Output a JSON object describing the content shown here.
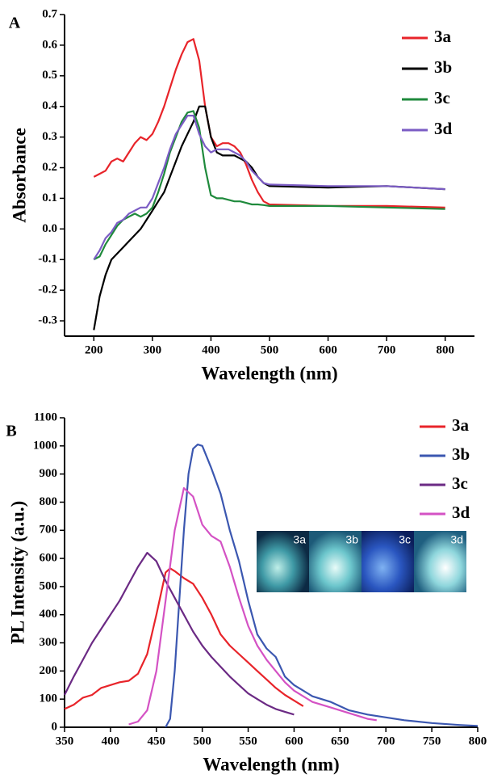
{
  "chart_data": [
    {
      "type": "line",
      "panel_label": "A",
      "xlabel": "Wavelength (nm)",
      "ylabel": "Absorbance",
      "xlim": [
        150,
        850
      ],
      "ylim": [
        -0.35,
        0.7
      ],
      "xticks": [
        200,
        300,
        400,
        500,
        600,
        700,
        800
      ],
      "yticks": [
        -0.3,
        -0.2,
        -0.1,
        {
          "value": 0,
          "label": "0.0"
        },
        0.1,
        0.2,
        0.3,
        0.4,
        0.5,
        0.6,
        0.7
      ],
      "legend": "upper right",
      "x": [
        200,
        210,
        220,
        230,
        240,
        250,
        260,
        270,
        280,
        290,
        300,
        310,
        320,
        330,
        340,
        350,
        360,
        370,
        380,
        390,
        400,
        410,
        420,
        430,
        440,
        450,
        460,
        470,
        480,
        490,
        500,
        600,
        700,
        800
      ],
      "series": [
        {
          "name": "3a",
          "color": "#e8242a",
          "values": [
            0.17,
            0.18,
            0.19,
            0.22,
            0.23,
            0.22,
            0.25,
            0.28,
            0.3,
            0.29,
            0.31,
            0.35,
            0.4,
            0.46,
            0.52,
            0.57,
            0.61,
            0.62,
            0.55,
            0.4,
            0.3,
            0.27,
            0.28,
            0.28,
            0.27,
            0.25,
            0.21,
            0.16,
            0.12,
            0.09,
            0.08,
            0.075,
            0.075,
            0.07
          ]
        },
        {
          "name": "3b",
          "color": "#000000",
          "values": [
            -0.33,
            -0.22,
            -0.15,
            -0.1,
            -0.08,
            -0.06,
            -0.04,
            -0.02,
            0.0,
            0.03,
            0.06,
            0.09,
            0.12,
            0.17,
            0.22,
            0.27,
            0.31,
            0.35,
            0.4,
            0.4,
            0.3,
            0.25,
            0.24,
            0.24,
            0.24,
            0.23,
            0.22,
            0.2,
            0.17,
            0.15,
            0.14,
            0.135,
            0.14,
            0.13
          ]
        },
        {
          "name": "3c",
          "color": "#1f8a3c",
          "values": [
            -0.1,
            -0.09,
            -0.05,
            -0.02,
            0.01,
            0.03,
            0.04,
            0.05,
            0.04,
            0.05,
            0.07,
            0.12,
            0.18,
            0.25,
            0.3,
            0.35,
            0.38,
            0.385,
            0.33,
            0.2,
            0.11,
            0.1,
            0.1,
            0.095,
            0.09,
            0.09,
            0.085,
            0.08,
            0.08,
            0.078,
            0.075,
            0.075,
            0.07,
            0.065
          ]
        },
        {
          "name": "3d",
          "color": "#7b5cc4",
          "values": [
            -0.1,
            -0.07,
            -0.03,
            -0.01,
            0.02,
            0.03,
            0.05,
            0.06,
            0.07,
            0.07,
            0.1,
            0.15,
            0.2,
            0.26,
            0.31,
            0.34,
            0.37,
            0.37,
            0.31,
            0.27,
            0.25,
            0.26,
            0.26,
            0.26,
            0.25,
            0.24,
            0.22,
            0.19,
            0.17,
            0.15,
            0.145,
            0.14,
            0.14,
            0.13
          ]
        }
      ]
    },
    {
      "type": "line",
      "panel_label": "B",
      "xlabel": "Wavelength (nm)",
      "ylabel": "PL Intensity (a.u.)",
      "xlim": [
        350,
        800
      ],
      "ylim": [
        0,
        1100
      ],
      "xticks": [
        350,
        400,
        450,
        500,
        550,
        600,
        650,
        700,
        750,
        800
      ],
      "yticks": [
        0,
        100,
        200,
        300,
        400,
        500,
        600,
        700,
        800,
        900,
        1000,
        1100
      ],
      "legend": "upper right",
      "inset_labels": [
        "3a",
        "3b",
        "3c",
        "3d"
      ],
      "series": [
        {
          "name": "3a",
          "color": "#e8242a",
          "x": [
            350,
            360,
            370,
            380,
            390,
            400,
            410,
            420,
            430,
            440,
            450,
            460,
            465,
            470,
            480,
            490,
            500,
            510,
            520,
            530,
            540,
            550,
            560,
            570,
            580,
            590,
            600,
            610
          ],
          "values": [
            65,
            80,
            105,
            115,
            140,
            150,
            160,
            165,
            190,
            260,
            400,
            550,
            565,
            555,
            530,
            510,
            460,
            400,
            330,
            290,
            260,
            230,
            200,
            170,
            140,
            115,
            95,
            75
          ]
        },
        {
          "name": "3b",
          "color": "#3b57b0",
          "x": [
            460,
            465,
            470,
            475,
            480,
            485,
            490,
            495,
            500,
            510,
            520,
            530,
            540,
            550,
            560,
            570,
            580,
            590,
            600,
            610,
            620,
            640,
            660,
            680,
            700,
            720,
            750,
            780,
            800
          ],
          "values": [
            0,
            30,
            200,
            450,
            700,
            900,
            990,
            1005,
            1000,
            920,
            830,
            700,
            590,
            450,
            330,
            280,
            250,
            180,
            150,
            130,
            110,
            90,
            60,
            45,
            35,
            25,
            15,
            8,
            5
          ]
        },
        {
          "name": "3c",
          "color": "#6b2a84",
          "x": [
            350,
            360,
            370,
            380,
            390,
            400,
            410,
            420,
            430,
            440,
            450,
            460,
            470,
            480,
            490,
            500,
            510,
            520,
            530,
            540,
            550,
            560,
            570,
            580,
            590,
            600
          ],
          "values": [
            115,
            180,
            240,
            300,
            350,
            400,
            450,
            510,
            570,
            620,
            590,
            520,
            460,
            400,
            340,
            290,
            250,
            215,
            180,
            150,
            120,
            100,
            80,
            65,
            55,
            45
          ]
        },
        {
          "name": "3d",
          "color": "#d452c4",
          "x": [
            420,
            430,
            440,
            450,
            460,
            470,
            480,
            490,
            500,
            510,
            520,
            530,
            540,
            550,
            560,
            570,
            580,
            590,
            600,
            620,
            640,
            660,
            680,
            690
          ],
          "values": [
            10,
            20,
            60,
            200,
            450,
            700,
            850,
            820,
            720,
            680,
            660,
            570,
            460,
            360,
            290,
            240,
            200,
            160,
            130,
            90,
            70,
            50,
            30,
            25
          ]
        }
      ]
    }
  ]
}
